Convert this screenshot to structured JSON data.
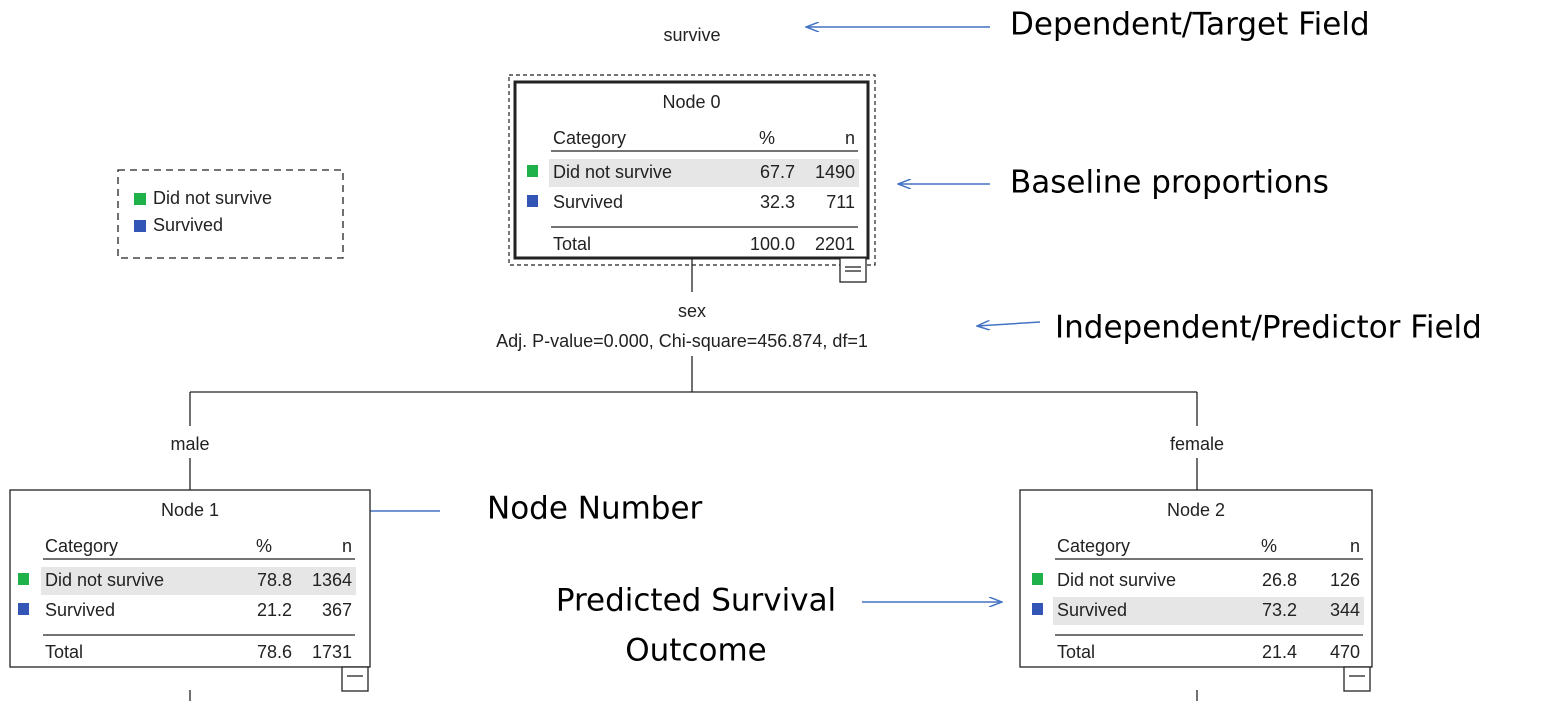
{
  "target": "survive",
  "legend": [
    {
      "label": "Did not survive",
      "color": "#1fb24a"
    },
    {
      "label": "Survived",
      "color": "#3355b5"
    }
  ],
  "nodes": [
    {
      "title": "Node 0",
      "header": [
        "Category",
        "%",
        "n"
      ],
      "rows": [
        [
          "Did not survive",
          "67.7",
          "1490"
        ],
        [
          "Survived",
          "32.3",
          "711"
        ]
      ],
      "total": [
        "Total",
        "100.0",
        "2201"
      ]
    },
    {
      "title": "Node 1",
      "header": [
        "Category",
        "%",
        "n"
      ],
      "rows": [
        [
          "Did not survive",
          "78.8",
          "1364"
        ],
        [
          "Survived",
          "21.2",
          "367"
        ]
      ],
      "total": [
        "Total",
        "78.6",
        "1731"
      ]
    },
    {
      "title": "Node 2",
      "header": [
        "Category",
        "%",
        "n"
      ],
      "rows": [
        [
          "Did not survive",
          "26.8",
          "126"
        ],
        [
          "Survived",
          "73.2",
          "344"
        ]
      ],
      "total": [
        "Total",
        "21.4",
        "470"
      ]
    }
  ],
  "split": {
    "field": "sex",
    "stats": "Adj. P-value=0.000, Chi-square=456.874, df=1"
  },
  "branches": [
    "male",
    "female"
  ],
  "annotations": {
    "target": "Dependent/Target Field",
    "baseline": "Baseline proportions",
    "predictor": "Independent/Predictor Field",
    "node_number": "Node Number",
    "predicted": [
      "Predicted Survival",
      "Outcome"
    ]
  }
}
